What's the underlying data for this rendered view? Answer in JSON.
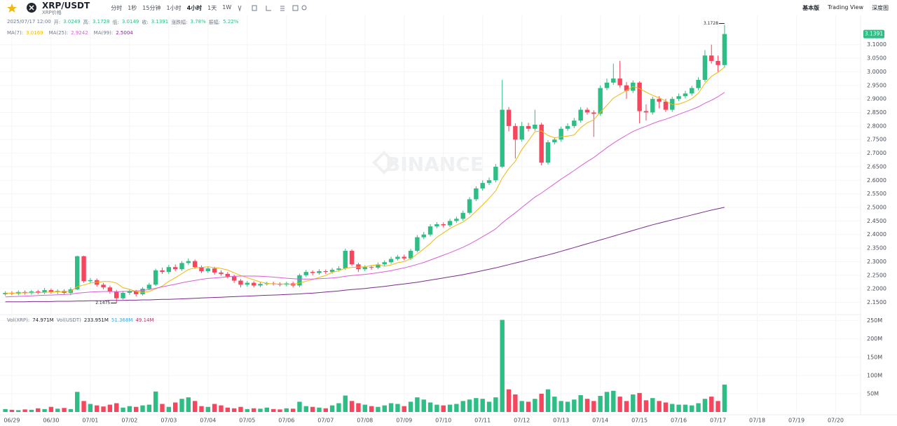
{
  "toolbar": {
    "symbol": "XRP/USDT",
    "subtitle": "XRP价格",
    "intervals": [
      "分时",
      "1秒",
      "15分钟",
      "1小时",
      "4小时",
      "1天",
      "1W"
    ],
    "views": [
      "基本版",
      "Trading View",
      "深度图"
    ]
  },
  "info": {
    "time": "2025/07/17 12:00",
    "open_label": "开:",
    "high_label": "高:",
    "low_label": "低:",
    "close_label": "收:",
    "change_label": "涨跌幅:",
    "change": "3.78%",
    "amplitude_label": "振幅:",
    "amplitude": "5.22%"
  },
  "watermark": "BINANCE",
  "chart_data": {
    "type": "candlestick",
    "up_color": "#2ebd85",
    "down_color": "#f6465d",
    "grid": true,
    "categories": [
      null,
      "06/29",
      null,
      null,
      null,
      null,
      null,
      "06/30",
      null,
      null,
      null,
      null,
      null,
      "07/01",
      null,
      null,
      null,
      null,
      null,
      "07/02",
      null,
      null,
      null,
      null,
      null,
      "07/03",
      null,
      null,
      null,
      null,
      null,
      "07/04",
      null,
      null,
      null,
      null,
      null,
      "07/05",
      null,
      null,
      null,
      null,
      null,
      "07/06",
      null,
      null,
      null,
      null,
      null,
      "07/07",
      null,
      null,
      null,
      null,
      null,
      "07/08",
      null,
      null,
      null,
      null,
      null,
      "07/09",
      null,
      null,
      null,
      null,
      null,
      "07/10",
      null,
      null,
      null,
      null,
      null,
      "07/11",
      null,
      null,
      null,
      null,
      null,
      "07/12",
      null,
      null,
      null,
      null,
      null,
      "07/13",
      null,
      null,
      null,
      null,
      null,
      "07/14",
      null,
      null,
      null,
      null,
      null,
      "07/15",
      null,
      null,
      null,
      null,
      null,
      "07/16",
      null,
      null,
      null,
      null,
      null,
      "07/17",
      null
    ],
    "future_categories": [
      "07/18",
      "07/19",
      "07/20"
    ],
    "open": [
      2.18,
      2.185,
      2.182,
      2.188,
      2.184,
      2.19,
      2.186,
      2.195,
      2.188,
      2.192,
      2.185,
      2.198,
      2.32,
      2.228,
      2.232,
      2.215,
      2.205,
      2.19,
      2.165,
      2.185,
      2.19,
      2.18,
      2.2,
      2.215,
      2.268,
      2.262,
      2.28,
      2.272,
      2.295,
      2.302,
      2.28,
      2.265,
      2.275,
      2.26,
      2.255,
      2.245,
      2.23,
      2.215,
      2.222,
      2.212,
      2.218,
      2.22,
      2.218,
      2.215,
      2.22,
      2.212,
      2.25,
      2.262,
      2.258,
      2.265,
      2.262,
      2.27,
      2.275,
      2.34,
      2.29,
      2.272,
      2.28,
      2.278,
      2.29,
      2.298,
      2.31,
      2.318,
      2.312,
      2.34,
      2.39,
      2.4,
      2.43,
      2.438,
      2.434,
      2.45,
      2.458,
      2.48,
      2.53,
      2.57,
      2.59,
      2.6,
      2.65,
      2.86,
      2.8,
      2.75,
      2.8,
      2.79,
      2.805,
      2.665,
      2.74,
      2.75,
      2.79,
      2.8,
      2.82,
      2.86,
      2.85,
      2.845,
      2.94,
      2.96,
      2.975,
      2.95,
      2.93,
      2.96,
      2.855,
      2.85,
      2.9,
      2.89,
      2.86,
      2.9,
      2.91,
      2.92,
      2.94,
      2.97,
      3.06,
      3.04,
      3.0249
    ],
    "high": [
      2.191,
      2.191,
      2.194,
      2.194,
      2.196,
      2.196,
      2.203,
      2.201,
      2.198,
      2.198,
      2.205,
      2.322,
      2.322,
      2.24,
      2.238,
      2.222,
      2.212,
      2.196,
      2.192,
      2.198,
      2.196,
      2.206,
      2.222,
      2.274,
      2.278,
      2.288,
      2.29,
      2.302,
      2.312,
      2.308,
      2.286,
      2.283,
      2.281,
      2.268,
      2.262,
      2.252,
      2.236,
      2.229,
      2.228,
      2.224,
      2.226,
      2.226,
      2.224,
      2.226,
      2.226,
      2.256,
      2.27,
      2.268,
      2.272,
      2.271,
      2.277,
      2.283,
      2.348,
      2.345,
      2.296,
      2.287,
      2.286,
      2.297,
      2.305,
      2.318,
      2.325,
      2.326,
      2.347,
      2.398,
      2.41,
      2.438,
      2.446,
      2.445,
      2.458,
      2.466,
      2.488,
      2.538,
      2.578,
      2.6,
      2.61,
      2.66,
      2.97,
      2.87,
      2.81,
      2.815,
      2.812,
      2.86,
      2.812,
      2.748,
      2.758,
      2.798,
      2.81,
      2.83,
      2.87,
      2.868,
      2.858,
      2.95,
      2.975,
      3.03,
      3.04,
      2.962,
      2.968,
      2.965,
      2.88,
      2.908,
      2.91,
      2.9,
      2.908,
      2.92,
      2.93,
      2.948,
      2.98,
      3.08,
      3.1,
      3.06,
      3.1728
    ],
    "low": [
      2.174,
      2.176,
      2.176,
      2.178,
      2.178,
      2.18,
      2.18,
      2.182,
      2.18,
      2.178,
      2.176,
      2.195,
      2.222,
      2.22,
      2.208,
      2.198,
      2.182,
      2.1475,
      2.16,
      2.178,
      2.172,
      2.175,
      2.195,
      2.21,
      2.255,
      2.255,
      2.265,
      2.266,
      2.288,
      2.274,
      2.258,
      2.258,
      2.252,
      2.248,
      2.238,
      2.222,
      2.205,
      2.208,
      2.205,
      2.206,
      2.212,
      2.212,
      2.209,
      2.209,
      2.205,
      2.206,
      2.244,
      2.25,
      2.252,
      2.255,
      2.256,
      2.264,
      2.27,
      2.284,
      2.262,
      2.265,
      2.27,
      2.272,
      2.284,
      2.292,
      2.304,
      2.305,
      2.306,
      2.334,
      2.383,
      2.393,
      2.423,
      2.426,
      2.428,
      2.443,
      2.451,
      2.474,
      2.523,
      2.562,
      2.582,
      2.592,
      2.645,
      2.78,
      2.68,
      2.742,
      2.78,
      2.782,
      2.655,
      2.658,
      2.732,
      2.742,
      2.782,
      2.792,
      2.812,
      2.842,
      2.76,
      2.838,
      2.932,
      2.952,
      2.942,
      2.9,
      2.922,
      2.81,
      2.82,
      2.842,
      2.865,
      2.852,
      2.852,
      2.892,
      2.902,
      2.912,
      2.932,
      2.962,
      3.03,
      3.0,
      3.0149
    ],
    "close": [
      2.185,
      2.182,
      2.188,
      2.184,
      2.19,
      2.186,
      2.195,
      2.188,
      2.192,
      2.185,
      2.198,
      2.32,
      2.228,
      2.232,
      2.215,
      2.205,
      2.19,
      2.165,
      2.185,
      2.19,
      2.18,
      2.2,
      2.215,
      2.268,
      2.262,
      2.28,
      2.272,
      2.295,
      2.302,
      2.28,
      2.265,
      2.275,
      2.26,
      2.255,
      2.245,
      2.23,
      2.215,
      2.222,
      2.212,
      2.218,
      2.22,
      2.218,
      2.215,
      2.22,
      2.212,
      2.25,
      2.262,
      2.258,
      2.265,
      2.262,
      2.27,
      2.275,
      2.34,
      2.29,
      2.272,
      2.28,
      2.278,
      2.29,
      2.298,
      2.31,
      2.318,
      2.312,
      2.34,
      2.39,
      2.4,
      2.43,
      2.438,
      2.434,
      2.45,
      2.458,
      2.48,
      2.53,
      2.57,
      2.59,
      2.6,
      2.65,
      2.86,
      2.8,
      2.75,
      2.8,
      2.79,
      2.805,
      2.665,
      2.74,
      2.75,
      2.79,
      2.8,
      2.82,
      2.86,
      2.85,
      2.845,
      2.94,
      2.96,
      2.975,
      2.95,
      2.93,
      2.96,
      2.855,
      2.85,
      2.9,
      2.89,
      2.86,
      2.9,
      2.91,
      2.92,
      2.94,
      2.97,
      3.06,
      3.04,
      3.0249,
      3.1391
    ],
    "ylim": [
      2.11,
      3.2
    ],
    "yticks": [
      {
        "value": 2.15,
        "label": "2.1500"
      },
      {
        "value": 2.2,
        "label": "2.2000"
      },
      {
        "value": 2.25,
        "label": "2.2500"
      },
      {
        "value": 2.3,
        "label": "2.3000"
      },
      {
        "value": 2.35,
        "label": "2.3500"
      },
      {
        "value": 2.4,
        "label": "2.4000"
      },
      {
        "value": 2.45,
        "label": "2.4500"
      },
      {
        "value": 2.5,
        "label": "2.5000"
      },
      {
        "value": 2.55,
        "label": "2.5500"
      },
      {
        "value": 2.6,
        "label": "2.6000"
      },
      {
        "value": 2.65,
        "label": "2.6500"
      },
      {
        "value": 2.7,
        "label": "2.7000"
      },
      {
        "value": 2.75,
        "label": "2.7500"
      },
      {
        "value": 2.8,
        "label": "2.8000"
      },
      {
        "value": 2.85,
        "label": "2.8500"
      },
      {
        "value": 2.9,
        "label": "2.9000"
      },
      {
        "value": 2.95,
        "label": "2.9500"
      },
      {
        "value": 3.0,
        "label": "3.0000"
      },
      {
        "value": 3.05,
        "label": "3.0500"
      },
      {
        "value": 3.1,
        "label": "3.1000"
      }
    ],
    "moving_averages": [
      {
        "name": "MA(7):",
        "color": "#f0b90b",
        "values": [
          2.184,
          2.184,
          2.185,
          2.185,
          2.186,
          2.186,
          2.187,
          2.188,
          2.189,
          2.189,
          2.191,
          2.208,
          2.214,
          2.221,
          2.224,
          2.227,
          2.227,
          2.221,
          2.204,
          2.198,
          2.19,
          2.187,
          2.19,
          2.2,
          2.21,
          2.227,
          2.241,
          2.256,
          2.271,
          2.277,
          2.279,
          2.281,
          2.278,
          2.275,
          2.269,
          2.259,
          2.249,
          2.241,
          2.233,
          2.225,
          2.22,
          2.218,
          2.218,
          2.218,
          2.216,
          2.221,
          2.228,
          2.234,
          2.242,
          2.249,
          2.261,
          2.266,
          2.276,
          2.279,
          2.28,
          2.281,
          2.286,
          2.289,
          2.283,
          2.288,
          2.296,
          2.3,
          2.311,
          2.328,
          2.347,
          2.367,
          2.39,
          2.406,
          2.422,
          2.435,
          2.446,
          2.463,
          2.486,
          2.509,
          2.534,
          2.561,
          2.608,
          2.643,
          2.67,
          2.714,
          2.745,
          2.779,
          2.782,
          2.765,
          2.757,
          2.76,
          2.763,
          2.767,
          2.794,
          2.812,
          2.823,
          2.851,
          2.876,
          2.903,
          2.917,
          2.931,
          2.946,
          2.938,
          2.925,
          2.913,
          2.904,
          2.892,
          2.879,
          2.881,
          2.889,
          2.901,
          2.921,
          2.957,
          2.983,
          2.998,
          3.0169
        ]
      },
      {
        "name": "MA(25):",
        "color": "#d95fd6",
        "values": [
          2.17,
          2.171,
          2.172,
          2.173,
          2.174,
          2.175,
          2.176,
          2.177,
          2.178,
          2.179,
          2.18,
          2.184,
          2.186,
          2.188,
          2.189,
          2.19,
          2.19,
          2.189,
          2.19,
          2.191,
          2.192,
          2.194,
          2.197,
          2.202,
          2.207,
          2.212,
          2.217,
          2.222,
          2.227,
          2.231,
          2.235,
          2.238,
          2.24,
          2.242,
          2.244,
          2.246,
          2.247,
          2.247,
          2.247,
          2.246,
          2.245,
          2.243,
          2.241,
          2.239,
          2.237,
          2.236,
          2.236,
          2.236,
          2.237,
          2.238,
          2.24,
          2.242,
          2.246,
          2.249,
          2.251,
          2.253,
          2.256,
          2.259,
          2.263,
          2.267,
          2.272,
          2.277,
          2.283,
          2.29,
          2.297,
          2.306,
          2.315,
          2.324,
          2.333,
          2.343,
          2.353,
          2.365,
          2.378,
          2.392,
          2.406,
          2.421,
          2.443,
          2.462,
          2.48,
          2.5,
          2.519,
          2.538,
          2.553,
          2.57,
          2.587,
          2.604,
          2.62,
          2.636,
          2.653,
          2.669,
          2.684,
          2.702,
          2.72,
          2.737,
          2.752,
          2.766,
          2.78,
          2.79,
          2.799,
          2.809,
          2.818,
          2.825,
          2.834,
          2.843,
          2.852,
          2.861,
          2.871,
          2.884,
          2.895,
          2.908,
          2.9242
        ]
      },
      {
        "name": "MA(99):",
        "color": "#7b2a8c",
        "values": [
          2.152,
          2.152,
          2.152,
          2.152,
          2.153,
          2.153,
          2.153,
          2.153,
          2.154,
          2.154,
          2.154,
          2.155,
          2.155,
          2.156,
          2.156,
          2.156,
          2.157,
          2.157,
          2.157,
          2.158,
          2.158,
          2.159,
          2.159,
          2.16,
          2.161,
          2.161,
          2.162,
          2.163,
          2.164,
          2.165,
          2.166,
          2.167,
          2.168,
          2.169,
          2.17,
          2.171,
          2.172,
          2.173,
          2.174,
          2.175,
          2.176,
          2.177,
          2.178,
          2.179,
          2.18,
          2.181,
          2.183,
          2.184,
          2.186,
          2.188,
          2.19,
          2.192,
          2.195,
          2.197,
          2.199,
          2.201,
          2.204,
          2.206,
          2.209,
          2.212,
          2.215,
          2.218,
          2.221,
          2.224,
          2.228,
          2.232,
          2.236,
          2.24,
          2.244,
          2.248,
          2.252,
          2.257,
          2.262,
          2.267,
          2.272,
          2.277,
          2.283,
          2.289,
          2.295,
          2.301,
          2.307,
          2.313,
          2.319,
          2.325,
          2.331,
          2.338,
          2.345,
          2.352,
          2.359,
          2.366,
          2.373,
          2.38,
          2.387,
          2.394,
          2.401,
          2.408,
          2.415,
          2.422,
          2.429,
          2.436,
          2.442,
          2.448,
          2.454,
          2.46,
          2.466,
          2.472,
          2.478,
          2.484,
          2.49,
          2.495,
          2.5004
        ]
      }
    ],
    "volume": {
      "label": "Vol(XRP):",
      "value_label": "74.971M",
      "usdt_label": "Vol(USDT)",
      "usdt_value": "233.951M",
      "ma_labels": [
        "51.368M",
        "49.14M"
      ],
      "values": [
        8,
        6,
        5,
        7,
        6,
        10,
        8,
        14,
        9,
        11,
        8,
        55,
        30,
        22,
        18,
        15,
        20,
        24,
        12,
        16,
        14,
        18,
        20,
        56,
        22,
        14,
        26,
        36,
        40,
        30,
        16,
        14,
        22,
        18,
        12,
        10,
        14,
        8,
        10,
        9,
        12,
        8,
        7,
        10,
        9,
        28,
        16,
        14,
        12,
        10,
        18,
        24,
        45,
        30,
        24,
        20,
        16,
        14,
        18,
        24,
        22,
        16,
        28,
        40,
        34,
        26,
        20,
        18,
        20,
        22,
        30,
        34,
        38,
        36,
        28,
        40,
        252,
        62,
        48,
        30,
        28,
        36,
        50,
        62,
        42,
        30,
        28,
        34,
        46,
        36,
        30,
        44,
        55,
        58,
        42,
        30,
        48,
        52,
        32,
        38,
        30,
        26,
        22,
        20,
        20,
        18,
        24,
        36,
        42,
        30,
        74.971
      ],
      "ylim": [
        0,
        255
      ],
      "yticks": [
        {
          "value": 50,
          "label": "50M"
        },
        {
          "value": 100,
          "label": "100M"
        },
        {
          "value": 150,
          "label": "150M"
        },
        {
          "value": 200,
          "label": "200M"
        },
        {
          "value": 250,
          "label": "250M"
        }
      ]
    }
  }
}
